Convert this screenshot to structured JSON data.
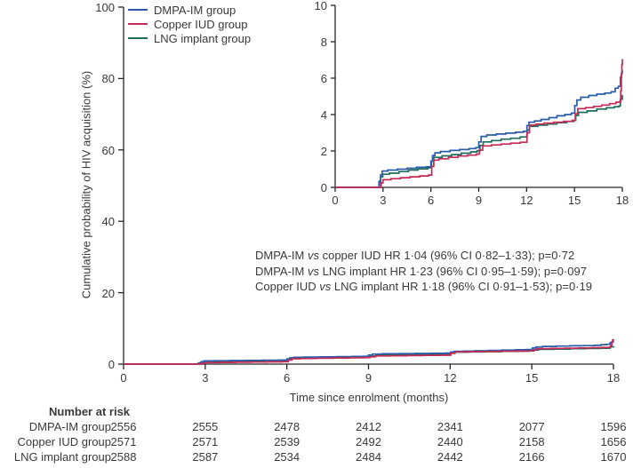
{
  "figure": {
    "background": "#ffffff",
    "text_color": "#3a3a3a",
    "axis_color": "#262626"
  },
  "risk_table": {
    "title": "Number at risk",
    "rows": [
      {
        "label": "DMPA-IM group",
        "values": [
          2556,
          2555,
          2478,
          2412,
          2341,
          2077,
          1596
        ]
      },
      {
        "label": "Copper IUD group",
        "values": [
          2571,
          2571,
          2539,
          2492,
          2440,
          2158,
          1656
        ]
      },
      {
        "label": "LNG implant group",
        "values": [
          2588,
          2587,
          2534,
          2484,
          2442,
          2166,
          1670
        ]
      }
    ]
  },
  "chart_data": {
    "type": "line",
    "variant": "kaplan-meier-step",
    "title": "",
    "xlabel": "Time since enrolment (months)",
    "ylabel": "Cumulative probability of HIV acquisition (%)",
    "legend_position": "top-left",
    "grid": false,
    "main_axis": {
      "xlim": [
        0,
        18
      ],
      "ylim": [
        0,
        100
      ],
      "xticks": [
        0,
        3,
        6,
        9,
        12,
        15,
        18
      ],
      "yticks": [
        0,
        20,
        40,
        60,
        80,
        100
      ]
    },
    "inset_axis": {
      "xlim": [
        0,
        18
      ],
      "ylim": [
        0,
        10
      ],
      "xticks": [
        0,
        3,
        6,
        9,
        12,
        15,
        18
      ],
      "yticks": [
        0,
        2,
        4,
        6,
        8,
        10
      ]
    },
    "annotations": [
      {
        "before": "DMPA-IM ",
        "vs": "vs",
        "after": " copper IUD HR 1·04 (96% CI 0·82–1·33); p=0·72"
      },
      {
        "before": "DMPA-IM ",
        "vs": "vs",
        "after": " LNG implant HR 1·23 (96% CI 0·95–1·59); p=0·097"
      },
      {
        "before": "Copper IUD ",
        "vs": "vs",
        "after": " LNG implant HR 1·18 (96% CI 0·91–1·53); p=0·19"
      }
    ],
    "series": [
      {
        "name": "DMPA-IM group",
        "color": "#2a5ca8",
        "points": [
          [
            0,
            0
          ],
          [
            2.7,
            0
          ],
          [
            2.78,
            0.35
          ],
          [
            2.85,
            0.7
          ],
          [
            2.95,
            0.9
          ],
          [
            3.3,
            0.95
          ],
          [
            3.9,
            1.0
          ],
          [
            4.5,
            1.05
          ],
          [
            5.1,
            1.1
          ],
          [
            5.7,
            1.13
          ],
          [
            6.0,
            1.45
          ],
          [
            6.1,
            1.75
          ],
          [
            6.25,
            1.9
          ],
          [
            6.6,
            1.97
          ],
          [
            7.2,
            2.03
          ],
          [
            7.8,
            2.08
          ],
          [
            8.4,
            2.13
          ],
          [
            8.8,
            2.18
          ],
          [
            9.0,
            2.5
          ],
          [
            9.15,
            2.8
          ],
          [
            9.5,
            2.88
          ],
          [
            10.1,
            2.93
          ],
          [
            10.7,
            2.98
          ],
          [
            11.3,
            3.03
          ],
          [
            11.8,
            3.08
          ],
          [
            12.02,
            3.4
          ],
          [
            12.15,
            3.58
          ],
          [
            12.5,
            3.65
          ],
          [
            12.9,
            3.73
          ],
          [
            13.4,
            3.83
          ],
          [
            13.9,
            3.93
          ],
          [
            14.4,
            4.0
          ],
          [
            14.8,
            4.08
          ],
          [
            15.02,
            4.5
          ],
          [
            15.15,
            4.8
          ],
          [
            15.4,
            4.95
          ],
          [
            15.9,
            5.05
          ],
          [
            16.4,
            5.12
          ],
          [
            16.9,
            5.18
          ],
          [
            17.3,
            5.25
          ],
          [
            17.55,
            5.45
          ],
          [
            17.75,
            5.55
          ],
          [
            17.88,
            6.05
          ],
          [
            17.95,
            6.3
          ],
          [
            18,
            6.42
          ]
        ]
      },
      {
        "name": "Copper IUD group",
        "color": "#c62a55",
        "points": [
          [
            0,
            0
          ],
          [
            2.8,
            0
          ],
          [
            2.88,
            0.25
          ],
          [
            3.0,
            0.42
          ],
          [
            3.5,
            0.48
          ],
          [
            4.1,
            0.53
          ],
          [
            4.7,
            0.58
          ],
          [
            5.3,
            0.63
          ],
          [
            5.85,
            0.68
          ],
          [
            6.05,
            1.15
          ],
          [
            6.18,
            1.5
          ],
          [
            6.5,
            1.57
          ],
          [
            7.1,
            1.65
          ],
          [
            7.7,
            1.72
          ],
          [
            8.3,
            1.77
          ],
          [
            8.85,
            1.83
          ],
          [
            9.05,
            2.05
          ],
          [
            9.25,
            2.28
          ],
          [
            9.8,
            2.33
          ],
          [
            10.4,
            2.38
          ],
          [
            11.0,
            2.43
          ],
          [
            11.6,
            2.48
          ],
          [
            12.02,
            3.0
          ],
          [
            12.18,
            3.42
          ],
          [
            12.6,
            3.48
          ],
          [
            13.1,
            3.53
          ],
          [
            13.7,
            3.58
          ],
          [
            14.3,
            3.63
          ],
          [
            14.85,
            3.68
          ],
          [
            15.05,
            4.05
          ],
          [
            15.2,
            4.32
          ],
          [
            15.7,
            4.38
          ],
          [
            16.2,
            4.45
          ],
          [
            16.7,
            4.52
          ],
          [
            17.2,
            4.6
          ],
          [
            17.6,
            4.68
          ],
          [
            17.85,
            4.73
          ],
          [
            17.9,
            5.3
          ],
          [
            17.94,
            6.2
          ],
          [
            17.97,
            6.75
          ],
          [
            18,
            7.05
          ]
        ]
      },
      {
        "name": "LNG implant group",
        "color": "#1e6c5b",
        "points": [
          [
            0,
            0
          ],
          [
            2.68,
            0
          ],
          [
            2.75,
            0.3
          ],
          [
            2.85,
            0.58
          ],
          [
            2.98,
            0.72
          ],
          [
            3.4,
            0.78
          ],
          [
            4.0,
            0.87
          ],
          [
            4.6,
            0.95
          ],
          [
            5.2,
            1.02
          ],
          [
            5.8,
            1.08
          ],
          [
            6.04,
            1.45
          ],
          [
            6.18,
            1.65
          ],
          [
            6.7,
            1.73
          ],
          [
            7.3,
            1.8
          ],
          [
            7.9,
            1.88
          ],
          [
            8.5,
            1.95
          ],
          [
            8.9,
            2.02
          ],
          [
            9.08,
            2.3
          ],
          [
            9.28,
            2.5
          ],
          [
            9.8,
            2.57
          ],
          [
            10.4,
            2.65
          ],
          [
            11.0,
            2.7
          ],
          [
            11.6,
            2.77
          ],
          [
            12.03,
            3.15
          ],
          [
            12.18,
            3.35
          ],
          [
            12.7,
            3.42
          ],
          [
            13.3,
            3.48
          ],
          [
            13.9,
            3.55
          ],
          [
            14.5,
            3.62
          ],
          [
            14.95,
            3.68
          ],
          [
            15.08,
            3.95
          ],
          [
            15.25,
            4.12
          ],
          [
            15.8,
            4.2
          ],
          [
            16.4,
            4.3
          ],
          [
            17.0,
            4.37
          ],
          [
            17.5,
            4.43
          ],
          [
            17.78,
            4.47
          ],
          [
            17.88,
            4.85
          ],
          [
            18,
            5.08
          ]
        ]
      }
    ]
  }
}
